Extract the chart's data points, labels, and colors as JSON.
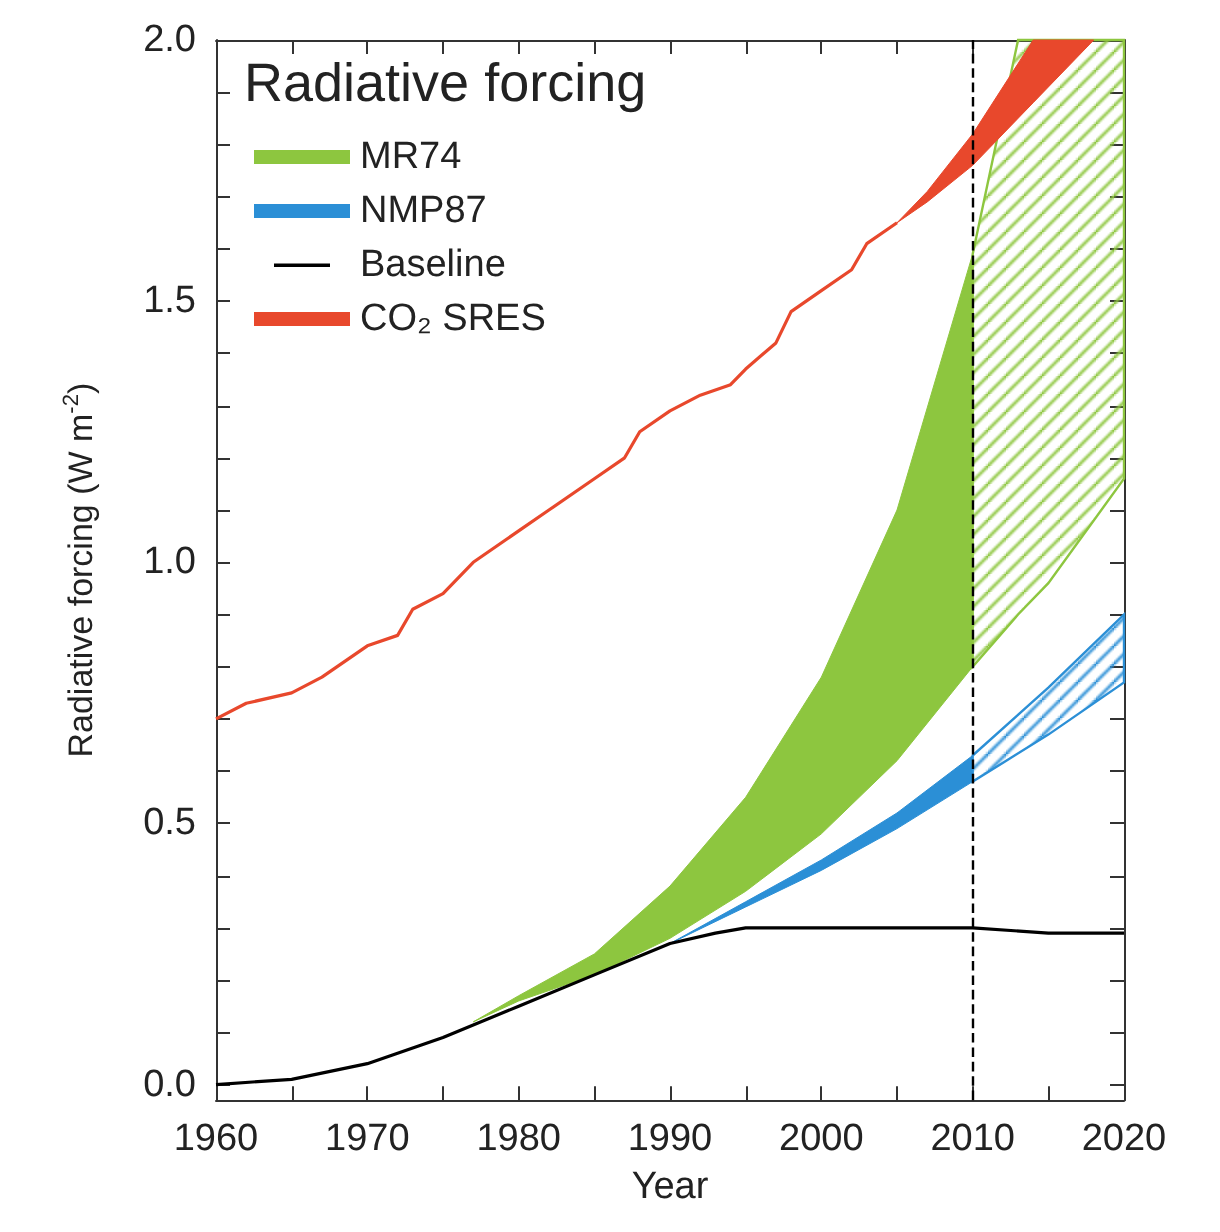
{
  "chart_data": {
    "type": "line",
    "xlabel": "Year",
    "ylabel": "Radiative forcing (W m$^{-2}$)",
    "legend_title": "Radiative forcing",
    "legend": "top left",
    "grid": false,
    "marker": "none",
    "xlim": [
      1960,
      2020
    ],
    "xticks": [
      1960,
      {
        "value": 1965,
        "label": null
      },
      1970,
      {
        "value": 1975,
        "label": null
      },
      1980,
      {
        "value": 1985,
        "label": null
      },
      1990,
      {
        "value": 1995,
        "label": null
      },
      2000,
      {
        "value": 2005,
        "label": null
      },
      2010,
      {
        "value": 2015,
        "label": null
      },
      2020
    ],
    "ylim": [
      -0.03,
      2.0
    ],
    "yticks": [
      {
        "value": 0,
        "label": "0.0"
      },
      {
        "value": 0.1,
        "label": null
      },
      {
        "value": 0.2,
        "label": null
      },
      {
        "value": 0.3,
        "label": null
      },
      {
        "value": 0.4,
        "label": null
      },
      {
        "value": 0.5,
        "label": "0.5"
      },
      {
        "value": 0.6,
        "label": null
      },
      {
        "value": 0.7,
        "label": null
      },
      {
        "value": 0.8,
        "label": null
      },
      {
        "value": 0.9,
        "label": null
      },
      {
        "value": 1,
        "label": "1.0"
      },
      {
        "value": 1.1,
        "label": null
      },
      {
        "value": 1.2,
        "label": null
      },
      {
        "value": 1.3,
        "label": null
      },
      {
        "value": 1.4,
        "label": null
      },
      {
        "value": 1.5,
        "label": "1.5"
      },
      {
        "value": 1.6,
        "label": null
      },
      {
        "value": 1.7,
        "label": null
      },
      {
        "value": 1.8,
        "label": null
      },
      {
        "value": 1.9,
        "label": null
      },
      {
        "value": 2,
        "label": "2.0"
      }
    ],
    "ref_lines": [
      {
        "axis": "x",
        "value": 2010,
        "color": "#000000",
        "line_style": "dashed"
      }
    ],
    "series": [
      {
        "name": "MR74",
        "type": "area",
        "color": "#8dc63f",
        "x": [
          1977,
          1980,
          1985,
          1990,
          1995,
          2000,
          2005,
          2010
        ],
        "values": [
          null,
          null,
          null,
          null,
          null,
          null,
          null,
          null
        ],
        "lower": [
          0.12,
          0.16,
          0.21,
          0.28,
          0.37,
          0.48,
          0.62,
          0.8
        ],
        "upper": [
          0.12,
          0.17,
          0.25,
          0.38,
          0.55,
          0.78,
          1.1,
          1.59
        ]
      },
      {
        "type": "area",
        "color": "#8dc63f",
        "x": [
          2010,
          2013,
          2015,
          2020
        ],
        "values": [
          null,
          null,
          null,
          null
        ],
        "lower": [
          0.8,
          0.9,
          0.96,
          1.16
        ],
        "upper": [
          1.59,
          2.0,
          2.0,
          2.0
        ]
      },
      {
        "name": "NMP87",
        "type": "area",
        "color": "#2b8fd6",
        "x": [
          1990,
          1995,
          2000,
          2005,
          2010
        ],
        "values": [
          null,
          null,
          null,
          null,
          null
        ],
        "lower": [
          0.27,
          0.34,
          0.41,
          0.49,
          0.58
        ],
        "upper": [
          0.27,
          0.35,
          0.43,
          0.52,
          0.63
        ]
      },
      {
        "type": "area",
        "color": "#2b8fd6",
        "x": [
          2010,
          2015,
          2020
        ],
        "values": [
          null,
          null,
          null
        ],
        "lower": [
          0.58,
          0.67,
          0.77
        ],
        "upper": [
          0.63,
          0.76,
          0.9
        ]
      },
      {
        "name": "Baseline",
        "color": "#000000",
        "x": [
          1960,
          1965,
          1970,
          1975,
          1980,
          1985,
          1990,
          1993,
          1995,
          2000,
          2005,
          2010,
          2015,
          2020
        ],
        "values": [
          0,
          0.01,
          0.04,
          0.09,
          0.15,
          0.21,
          0.27,
          0.29,
          0.3,
          0.3,
          0.3,
          0.3,
          0.29,
          0.29
        ]
      },
      {
        "name": "CO₂ SRES",
        "color": "#e8482c",
        "x": [
          1960,
          1962,
          1965,
          1967,
          1970,
          1972,
          1973,
          1975,
          1977,
          1980,
          1982,
          1985,
          1987,
          1988,
          1990,
          1992,
          1994,
          1995,
          1997,
          1998,
          2000,
          2002,
          2003,
          2005,
          2007,
          2010,
          2014,
          2018
        ],
        "values": [
          0.7,
          0.73,
          0.75,
          0.78,
          0.84,
          0.86,
          0.91,
          0.94,
          1.0,
          1.06,
          1.1,
          1.16,
          1.2,
          1.25,
          1.29,
          1.32,
          1.34,
          1.37,
          1.42,
          1.48,
          1.52,
          1.56,
          1.61,
          1.65,
          null,
          null,
          null,
          null
        ],
        "lower": [
          null,
          null,
          null,
          null,
          null,
          null,
          null,
          null,
          null,
          null,
          null,
          null,
          null,
          null,
          null,
          null,
          null,
          null,
          null,
          null,
          null,
          null,
          null,
          1.65,
          1.69,
          1.76,
          1.88,
          2.0
        ],
        "upper": [
          null,
          null,
          null,
          null,
          null,
          null,
          null,
          null,
          null,
          null,
          null,
          null,
          null,
          null,
          null,
          null,
          null,
          null,
          null,
          null,
          null,
          null,
          null,
          1.65,
          1.71,
          1.82,
          2.0,
          2.0
        ]
      }
    ]
  }
}
